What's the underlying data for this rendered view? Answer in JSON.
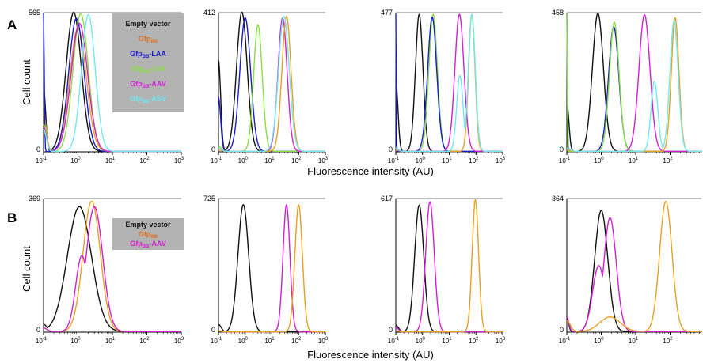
{
  "figure": {
    "rows": [
      {
        "letter": "A",
        "ylabel": "Cell count",
        "xlabel": "Fluorescence  intensity (AU)",
        "legend": {
          "title": "Empty vector",
          "items": [
            {
              "base": "Gfp",
              "sub": "BB",
              "suffix": "",
              "color": "#e07020"
            },
            {
              "base": "Gfp",
              "sub": "BB",
              "suffix": "-LAA",
              "color": "#1a1ad0"
            },
            {
              "base": "Gfp",
              "sub": "BB",
              "suffix": "-LVA",
              "color": "#88e040"
            },
            {
              "base": "Gfp",
              "sub": "BB",
              "suffix": "-AAV",
              "color": "#d020d0"
            },
            {
              "base": "Gfp",
              "sub": "BB",
              "suffix": "-ASV",
              "color": "#70e8f0"
            }
          ]
        }
      },
      {
        "letter": "B",
        "ylabel": "Cell count",
        "xlabel": "Fluorescence  intensity (AU)",
        "legend": {
          "title": "Empty vector",
          "items": [
            {
              "base": "Gfp",
              "sub": "BB",
              "suffix": "",
              "color": "#e07020"
            },
            {
              "base": "Gfp",
              "sub": "BB",
              "suffix": "-AAV",
              "color": "#d020d0"
            }
          ]
        }
      }
    ],
    "tick_labels": [
      {
        "base": "10",
        "exp": "-1"
      },
      {
        "base": "10",
        "exp": "0"
      },
      {
        "base": "10",
        "exp": "1"
      },
      {
        "base": "10",
        "exp": "2"
      },
      {
        "base": "10",
        "exp": "3"
      }
    ]
  },
  "chart_data": [
    {
      "type": "line",
      "row": "A",
      "panel": 1,
      "x_scale": "log",
      "xlim": [
        0.1,
        1000
      ],
      "ylim": [
        0,
        565
      ],
      "ymax_label": "565",
      "yzero_label": "0",
      "series": [
        {
          "color": "#111111",
          "peaks": [
            {
              "mu": 0.75,
              "h": 565,
              "w": 0.22
            }
          ],
          "low": {
            "at": 0.1,
            "h": 260,
            "w": 0.06
          }
        },
        {
          "color": "#e8a020",
          "peaks": [
            {
              "mu": 1.0,
              "h": 500,
              "w": 0.24
            }
          ],
          "low": {
            "at": 0.1,
            "h": 150,
            "w": 0.08
          }
        },
        {
          "color": "#1a1ad0",
          "peaks": [
            {
              "mu": 0.9,
              "h": 540,
              "w": 0.22
            }
          ],
          "low": {
            "at": 0.1,
            "h": 560,
            "w": 0.02
          }
        },
        {
          "color": "#88e040",
          "peaks": [
            {
              "mu": 1.2,
              "h": 560,
              "w": 0.22
            }
          ],
          "low": {
            "at": 0.1,
            "h": 110,
            "w": 0.08
          }
        },
        {
          "color": "#d020d0",
          "peaks": [
            {
              "mu": 1.1,
              "h": 520,
              "w": 0.24
            }
          ],
          "low": {
            "at": 0.1,
            "h": 100,
            "w": 0.08
          }
        },
        {
          "color": "#70e8f0",
          "peaks": [
            {
              "mu": 2.0,
              "h": 555,
              "w": 0.2
            }
          ],
          "low": {
            "at": 0.1,
            "h": 90,
            "w": 0.08
          }
        }
      ]
    },
    {
      "type": "line",
      "row": "A",
      "panel": 2,
      "x_scale": "log",
      "xlim": [
        0.1,
        1000
      ],
      "ylim": [
        0,
        412
      ],
      "ymax_label": "412",
      "yzero_label": "0",
      "series": [
        {
          "color": "#111111",
          "peaks": [
            {
              "mu": 0.75,
              "h": 412,
              "w": 0.2
            }
          ],
          "low": {
            "at": 0.1,
            "h": 270,
            "w": 0.08
          }
        },
        {
          "color": "#1a1ad0",
          "peaks": [
            {
              "mu": 1.0,
              "h": 395,
              "w": 0.2
            }
          ],
          "low": {
            "at": 0.1,
            "h": 160,
            "w": 0.08
          }
        },
        {
          "color": "#88e040",
          "peaks": [
            {
              "mu": 3.0,
              "h": 375,
              "w": 0.16
            }
          ],
          "low": {
            "at": 0.1,
            "h": 15,
            "w": 0.1
          }
        },
        {
          "color": "#d020d0",
          "peaks": [
            {
              "mu": 25,
              "h": 395,
              "w": 0.17
            }
          ],
          "low": {
            "at": 0.1,
            "h": 10,
            "w": 0.1
          }
        },
        {
          "color": "#e8a020",
          "peaks": [
            {
              "mu": 35,
              "h": 400,
              "w": 0.17
            }
          ],
          "low": {
            "at": 0.1,
            "h": 5,
            "w": 0.1
          }
        },
        {
          "color": "#70e8f0",
          "peaks": [
            {
              "mu": 28,
              "h": 400,
              "w": 0.2
            }
          ],
          "low": {
            "at": 0.1,
            "h": 10,
            "w": 0.1
          }
        }
      ]
    },
    {
      "type": "line",
      "row": "A",
      "panel": 3,
      "x_scale": "log",
      "xlim": [
        0.1,
        1000
      ],
      "ylim": [
        0,
        477
      ],
      "ymax_label": "477",
      "yzero_label": "0",
      "series": [
        {
          "color": "#111111",
          "peaks": [
            {
              "mu": 0.75,
              "h": 470,
              "w": 0.14
            }
          ],
          "low": {
            "at": 0.1,
            "h": 240,
            "w": 0.08
          }
        },
        {
          "color": "#88e040",
          "peaks": [
            {
              "mu": 2.5,
              "h": 470,
              "w": 0.16
            }
          ],
          "low": {
            "at": 0.1,
            "h": 15,
            "w": 0.05
          }
        },
        {
          "color": "#1a1ad0",
          "peaks": [
            {
              "mu": 2.3,
              "h": 460,
              "w": 0.17
            }
          ],
          "low": {
            "at": 0.1,
            "h": 470,
            "w": 0.015
          }
        },
        {
          "color": "#e8a020",
          "peaks": [
            {
              "mu": 70,
              "h": 470,
              "w": 0.12
            }
          ],
          "low": {
            "at": 0.1,
            "h": 5,
            "w": 0.1
          }
        },
        {
          "color": "#d020d0",
          "peaks": [
            {
              "mu": 24,
              "h": 470,
              "w": 0.17
            }
          ],
          "low": {
            "at": 0.1,
            "h": 10,
            "w": 0.1
          }
        },
        {
          "color": "#70e8f0",
          "peaks": [
            {
              "mu": 70,
              "h": 470,
              "w": 0.13
            },
            {
              "mu": 25,
              "h": 260,
              "w": 0.12
            }
          ],
          "low": {
            "at": 0.1,
            "h": 10,
            "w": 0.1
          }
        }
      ]
    },
    {
      "type": "line",
      "row": "A",
      "panel": 4,
      "x_scale": "log",
      "xlim": [
        0.1,
        1000
      ],
      "ylim": [
        0,
        458
      ],
      "ymax_label": "458",
      "yzero_label": "0",
      "series": [
        {
          "color": "#111111",
          "peaks": [
            {
              "mu": 0.8,
              "h": 455,
              "w": 0.16
            }
          ],
          "low": {
            "at": 0.1,
            "h": 160,
            "w": 0.06
          }
        },
        {
          "color": "#1a1ad0",
          "peaks": [
            {
              "mu": 2.3,
              "h": 410,
              "w": 0.15
            }
          ],
          "low": {
            "at": 0.1,
            "h": 455,
            "w": 0.015
          }
        },
        {
          "color": "#88e040",
          "peaks": [
            {
              "mu": 2.4,
              "h": 425,
              "w": 0.14
            }
          ],
          "low": {
            "at": 0.1,
            "h": 455,
            "w": 0.012
          }
        },
        {
          "color": "#d020d0",
          "peaks": [
            {
              "mu": 18,
              "h": 450,
              "w": 0.16
            }
          ],
          "low": {
            "at": 0.1,
            "h": 10,
            "w": 0.1
          }
        },
        {
          "color": "#e8a020",
          "peaks": [
            {
              "mu": 140,
              "h": 440,
              "w": 0.11
            }
          ],
          "low": {
            "at": 0.1,
            "h": 5,
            "w": 0.1
          }
        },
        {
          "color": "#70e8f0",
          "peaks": [
            {
              "mu": 130,
              "h": 430,
              "w": 0.12
            },
            {
              "mu": 35,
              "h": 230,
              "w": 0.1
            }
          ],
          "low": {
            "at": 0.1,
            "h": 10,
            "w": 0.1
          }
        }
      ]
    },
    {
      "type": "line",
      "row": "B",
      "panel": 1,
      "x_scale": "log",
      "xlim": [
        0.1,
        1000
      ],
      "ylim": [
        0,
        369
      ],
      "ymax_label": "369",
      "yzero_label": "0",
      "series": [
        {
          "color": "#111111",
          "peaks": [
            {
              "mu": 1.1,
              "h": 345,
              "w": 0.35
            }
          ],
          "low": {
            "at": 0.1,
            "h": 20,
            "w": 0.1
          }
        },
        {
          "color": "#e8a020",
          "peaks": [
            {
              "mu": 2.5,
              "h": 360,
              "w": 0.25
            }
          ],
          "low": {
            "at": 0.1,
            "h": 10,
            "w": 0.1
          }
        },
        {
          "color": "#d020d0",
          "peaks": [
            {
              "mu": 3.0,
              "h": 345,
              "w": 0.24
            },
            {
              "mu": 1.3,
              "h": 210,
              "w": 0.18
            }
          ],
          "low": {
            "at": 0.1,
            "h": 10,
            "w": 0.1
          }
        }
      ]
    },
    {
      "type": "line",
      "row": "B",
      "panel": 2,
      "x_scale": "log",
      "xlim": [
        0.1,
        1000
      ],
      "ylim": [
        0,
        725
      ],
      "ymax_label": "725",
      "yzero_label": "0",
      "series": [
        {
          "color": "#111111",
          "peaks": [
            {
              "mu": 0.85,
              "h": 690,
              "w": 0.2
            }
          ],
          "low": {
            "at": 0.1,
            "h": 40,
            "w": 0.1
          }
        },
        {
          "color": "#d020d0",
          "peaks": [
            {
              "mu": 35,
              "h": 690,
              "w": 0.13
            }
          ],
          "low": {
            "at": 0.1,
            "h": 5,
            "w": 0.1
          }
        },
        {
          "color": "#e8a020",
          "peaks": [
            {
              "mu": 100,
              "h": 690,
              "w": 0.14
            }
          ],
          "low": {
            "at": 0.1,
            "h": 5,
            "w": 0.1
          }
        }
      ]
    },
    {
      "type": "line",
      "row": "B",
      "panel": 3,
      "x_scale": "log",
      "xlim": [
        0.1,
        1000
      ],
      "ylim": [
        0,
        617
      ],
      "ymax_label": "617",
      "yzero_label": "0",
      "series": [
        {
          "color": "#111111",
          "peaks": [
            {
              "mu": 0.75,
              "h": 585,
              "w": 0.17
            }
          ],
          "low": {
            "at": 0.1,
            "h": 30,
            "w": 0.1
          }
        },
        {
          "color": "#d020d0",
          "peaks": [
            {
              "mu": 1.9,
              "h": 600,
              "w": 0.16
            }
          ],
          "low": {
            "at": 0.1,
            "h": 20,
            "w": 0.1
          }
        },
        {
          "color": "#e8a020",
          "peaks": [
            {
              "mu": 95,
              "h": 610,
              "w": 0.12
            }
          ],
          "low": {
            "at": 0.1,
            "h": 5,
            "w": 0.1
          }
        }
      ]
    },
    {
      "type": "line",
      "row": "B",
      "panel": 4,
      "x_scale": "log",
      "xlim": [
        0.1,
        1000
      ],
      "ylim": [
        0,
        364
      ],
      "ymax_label": "364",
      "yzero_label": "0",
      "series": [
        {
          "color": "#111111",
          "peaks": [
            {
              "mu": 1.0,
              "h": 330,
              "w": 0.19
            }
          ],
          "low": {
            "at": 0.1,
            "h": 40,
            "w": 0.05
          }
        },
        {
          "color": "#d020d0",
          "peaks": [
            {
              "mu": 1.8,
              "h": 310,
              "w": 0.18
            },
            {
              "mu": 0.85,
              "h": 180,
              "w": 0.18
            }
          ],
          "low": {
            "at": 0.1,
            "h": 40,
            "w": 0.06
          }
        },
        {
          "color": "#e8a020",
          "peaks": [
            {
              "mu": 75,
              "h": 355,
              "w": 0.18
            },
            {
              "mu": 1.8,
              "h": 40,
              "w": 0.3
            }
          ],
          "low": {
            "at": 0.1,
            "h": 30,
            "w": 0.1
          }
        }
      ]
    }
  ]
}
